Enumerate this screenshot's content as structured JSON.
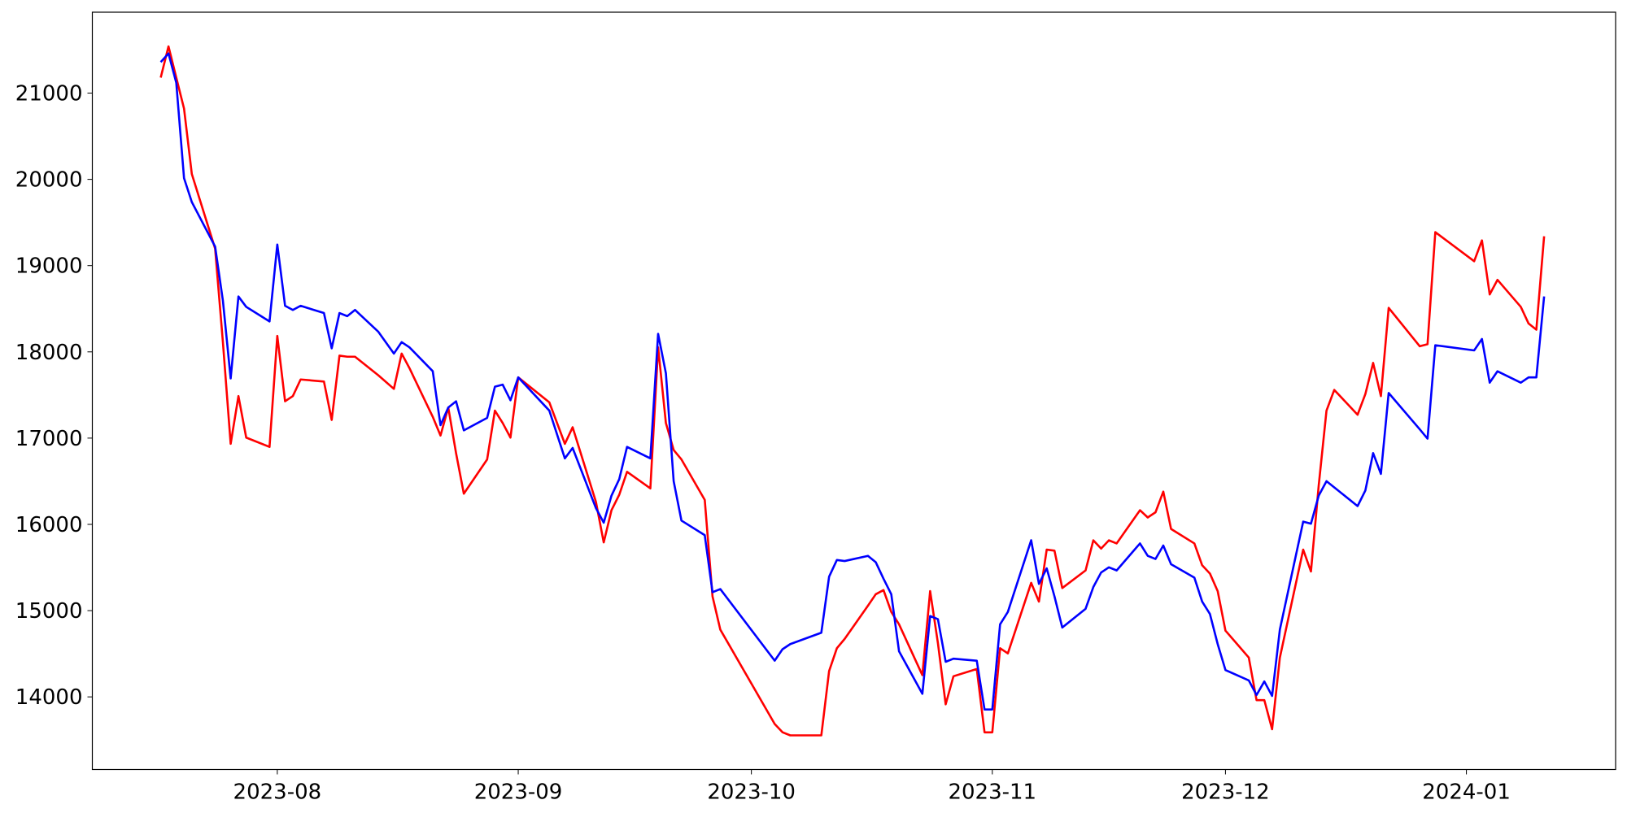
{
  "chart_data": {
    "type": "line",
    "x": [
      19555,
      19556,
      19557,
      19558,
      19559,
      19562,
      19563,
      19564,
      19565,
      19566,
      19569,
      19570,
      19571,
      19572,
      19573,
      19576,
      19577,
      19578,
      19579,
      19580,
      19583,
      19585,
      19586,
      19587,
      19590,
      19591,
      19592,
      19593,
      19594,
      19597,
      19598,
      19599,
      19600,
      19601,
      19605,
      19607,
      19608,
      19611,
      19612,
      19613,
      19614,
      19615,
      19618,
      19619,
      19620,
      19621,
      19622,
      19625,
      19626,
      19627,
      19634,
      19635,
      19636,
      19640,
      19641,
      19642,
      19643,
      19646,
      19647,
      19648,
      19649,
      19650,
      19653,
      19654,
      19655,
      19656,
      19657,
      19660,
      19661,
      19662,
      19663,
      19664,
      19667,
      19668,
      19669,
      19670,
      19671,
      19674,
      19675,
      19676,
      19677,
      19678,
      19681,
      19682,
      19683,
      19684,
      19685,
      19688,
      19689,
      19690,
      19691,
      19692,
      19695,
      19696,
      19697,
      19698,
      19699,
      19702,
      19703,
      19704,
      19705,
      19706,
      19709,
      19710,
      19711,
      19712,
      19713,
      19717,
      19718,
      19719,
      19724,
      19725,
      19726,
      19727,
      19730,
      19731,
      19732,
      19733
    ],
    "series": [
      {
        "color": "#ff0000",
        "values": [
          21180,
          21541,
          21180,
          20820,
          20062,
          19196,
          18113,
          16934,
          17487,
          17006,
          16898,
          18185,
          17427,
          17487,
          17680,
          17656,
          17211,
          17956,
          17944,
          17944,
          17728,
          17571,
          17980,
          17812,
          17247,
          17030,
          17355,
          16826,
          16356,
          16753,
          17319,
          17175,
          17006,
          17704,
          17415,
          16934,
          17126,
          16260,
          15791,
          16164,
          16344,
          16609,
          16417,
          18053,
          17175,
          16862,
          16753,
          16284,
          15165,
          14780,
          13686,
          13590,
          13554,
          13554,
          14299,
          14564,
          14672,
          15057,
          15190,
          15238,
          14985,
          14841,
          14252,
          15226,
          14624,
          13914,
          14239,
          14323,
          13589,
          13589,
          14564,
          14504,
          15322,
          15105,
          15707,
          15695,
          15262,
          15466,
          15815,
          15719,
          15815,
          15779,
          16164,
          16080,
          16140,
          16380,
          15947,
          15779,
          15526,
          15430,
          15226,
          14768,
          14456,
          13962,
          13962,
          13625,
          14456,
          15707,
          15454,
          16452,
          17319,
          17559,
          17271,
          17511,
          17872,
          17487,
          18510,
          18065,
          18089,
          19388,
          19051,
          19292,
          18666,
          18835,
          18522,
          18329,
          18257,
          19340
        ]
      },
      {
        "color": "#0000ff",
        "values": [
          21360,
          21460,
          21120,
          20014,
          19737,
          19220,
          18594,
          17692,
          18642,
          18522,
          18353,
          19244,
          18534,
          18486,
          18534,
          18450,
          18041,
          18450,
          18414,
          18486,
          18233,
          17980,
          18113,
          18053,
          17776,
          17150,
          17355,
          17427,
          17090,
          17235,
          17596,
          17620,
          17439,
          17704,
          17319,
          16765,
          16886,
          16188,
          16020,
          16333,
          16525,
          16898,
          16765,
          18209,
          17752,
          16501,
          16044,
          15875,
          15213,
          15250,
          14420,
          14552,
          14612,
          14744,
          15394,
          15587,
          15575,
          15635,
          15562,
          15370,
          15190,
          14528,
          14036,
          14937,
          14901,
          14407,
          14443,
          14419,
          13854,
          13854,
          14841,
          14985,
          15816,
          15310,
          15490,
          15165,
          14804,
          15021,
          15274,
          15442,
          15502,
          15466,
          15779,
          15635,
          15599,
          15755,
          15538,
          15382,
          15105,
          14961,
          14612,
          14311,
          14191,
          14022,
          14179,
          14011,
          14781,
          16032,
          16008,
          16333,
          16501,
          16429,
          16212,
          16393,
          16826,
          16585,
          17523,
          17102,
          16994,
          18077,
          18017,
          18149,
          17643,
          17775,
          17643,
          17704,
          17704,
          18642
        ]
      }
    ],
    "xlim": [
      19546.2,
      19742.2
    ],
    "xticks": [
      {
        "value": 19570,
        "label": "2023-08"
      },
      {
        "value": 19601,
        "label": "2023-09"
      },
      {
        "value": 19631,
        "label": "2023-10"
      },
      {
        "value": 19662,
        "label": "2023-11"
      },
      {
        "value": 19692,
        "label": "2023-12"
      },
      {
        "value": 19723,
        "label": "2024-01"
      }
    ],
    "ylim": [
      13158,
      21938
    ],
    "yticks": [
      14000,
      15000,
      16000,
      17000,
      18000,
      19000,
      20000,
      21000
    ],
    "grid": false
  }
}
